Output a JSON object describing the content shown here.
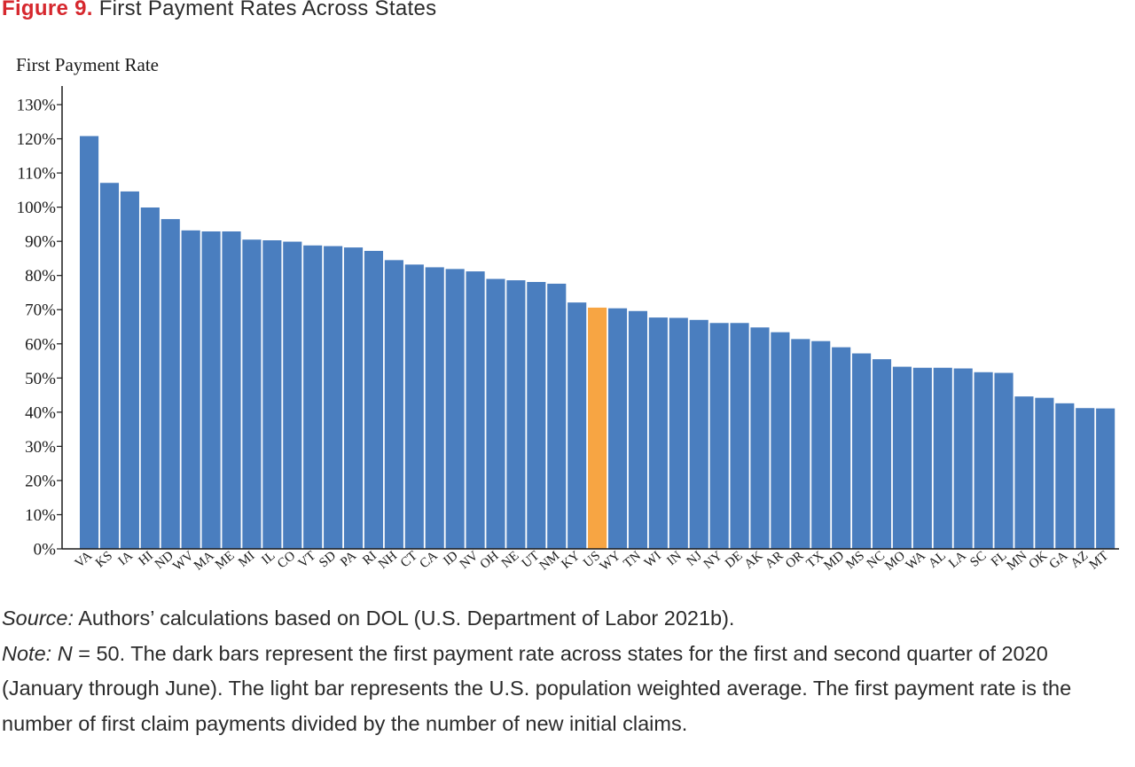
{
  "figure": {
    "number_label": "Figure 9.",
    "title": "First Payment Rates Across States"
  },
  "colors": {
    "bar": "#4a7ebf",
    "highlight": "#f7a543",
    "title_accent": "#d6282e"
  },
  "chart_data": {
    "type": "bar",
    "ylabel": "First Payment Rate",
    "xlabel": "",
    "ylim": [
      0,
      130
    ],
    "yticks": [
      0,
      10,
      20,
      30,
      40,
      50,
      60,
      70,
      80,
      90,
      100,
      110,
      120,
      130
    ],
    "ytick_labels": [
      "0%",
      "10%",
      "20%",
      "30%",
      "40%",
      "50%",
      "60%",
      "70%",
      "80%",
      "90%",
      "100%",
      "110%",
      "120%",
      "130%"
    ],
    "unit": "%",
    "grid": false,
    "highlight_category": "US",
    "categories": [
      "VA",
      "KS",
      "IA",
      "HI",
      "ND",
      "WV",
      "MA",
      "ME",
      "MI",
      "IL",
      "CO",
      "VT",
      "SD",
      "PA",
      "RI",
      "NH",
      "CT",
      "CA",
      "ID",
      "NV",
      "OH",
      "NE",
      "UT",
      "NM",
      "KY",
      "US",
      "WY",
      "TN",
      "WI",
      "IN",
      "NJ",
      "NY",
      "DE",
      "AK",
      "AR",
      "OR",
      "TX",
      "MD",
      "MS",
      "NC",
      "MO",
      "WA",
      "AL",
      "LA",
      "SC",
      "FL",
      "MN",
      "OK",
      "GA",
      "AZ",
      "MT"
    ],
    "values": [
      120.8,
      107.1,
      104.6,
      99.9,
      96.5,
      93.2,
      92.9,
      92.9,
      90.5,
      90.3,
      89.9,
      88.8,
      88.6,
      88.2,
      87.2,
      84.5,
      83.2,
      82.4,
      81.9,
      81.2,
      79.0,
      78.6,
      78.1,
      77.6,
      72.1,
      70.6,
      70.4,
      69.6,
      67.7,
      67.6,
      67.0,
      66.1,
      66.1,
      64.8,
      63.4,
      61.4,
      60.8,
      59.0,
      57.2,
      55.5,
      53.3,
      53.0,
      53.0,
      52.8,
      51.7,
      51.5,
      44.6,
      44.2,
      42.6,
      41.2,
      41.1
    ]
  },
  "notes": {
    "source_label": "Source:",
    "source_text": " Authors’ calculations based on DOL (U.S. Department of Labor 2021b).",
    "note_label": "Note:",
    "note_n": "N",
    "note_text": " = 50. The dark bars represent the first payment rate across states for the first and second quarter of 2020 (January through June). The light bar represents the U.S. population weighted average. The first payment rate is the number of first claim payments divided by the number of new initial claims."
  }
}
